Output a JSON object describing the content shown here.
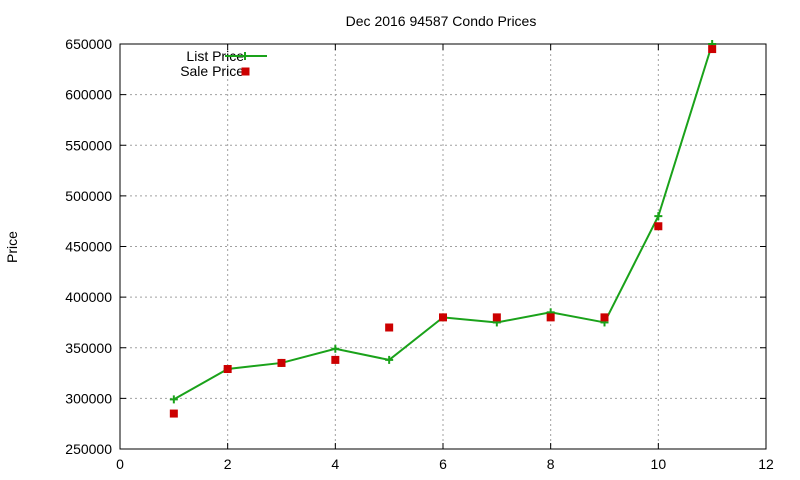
{
  "chart_data": {
    "type": "line",
    "title": "Dec 2016 94587 Condo Prices",
    "xlabel": "",
    "ylabel": "Price",
    "xlim": [
      0,
      12
    ],
    "ylim": [
      250000,
      650000
    ],
    "xticks": [
      0,
      2,
      4,
      6,
      8,
      10,
      12
    ],
    "yticks": [
      250000,
      300000,
      350000,
      400000,
      450000,
      500000,
      550000,
      600000,
      650000
    ],
    "grid": true,
    "legend_position": "top-left",
    "series": [
      {
        "name": "List Price",
        "style": "line-with-plus-markers",
        "color": "#1aa21a",
        "x": [
          1,
          2,
          3,
          4,
          5,
          6,
          7,
          8,
          9,
          10,
          11
        ],
        "y": [
          299000,
          329000,
          335000,
          349000,
          338000,
          380000,
          375000,
          385000,
          375000,
          480000,
          650000
        ]
      },
      {
        "name": "Sale Price",
        "style": "square-markers",
        "color": "#cc0000",
        "x": [
          1,
          2,
          3,
          4,
          5,
          6,
          7,
          8,
          9,
          10,
          11
        ],
        "y": [
          285000,
          329000,
          335000,
          338000,
          370000,
          380000,
          380000,
          380000,
          380000,
          470000,
          645000
        ]
      }
    ]
  }
}
